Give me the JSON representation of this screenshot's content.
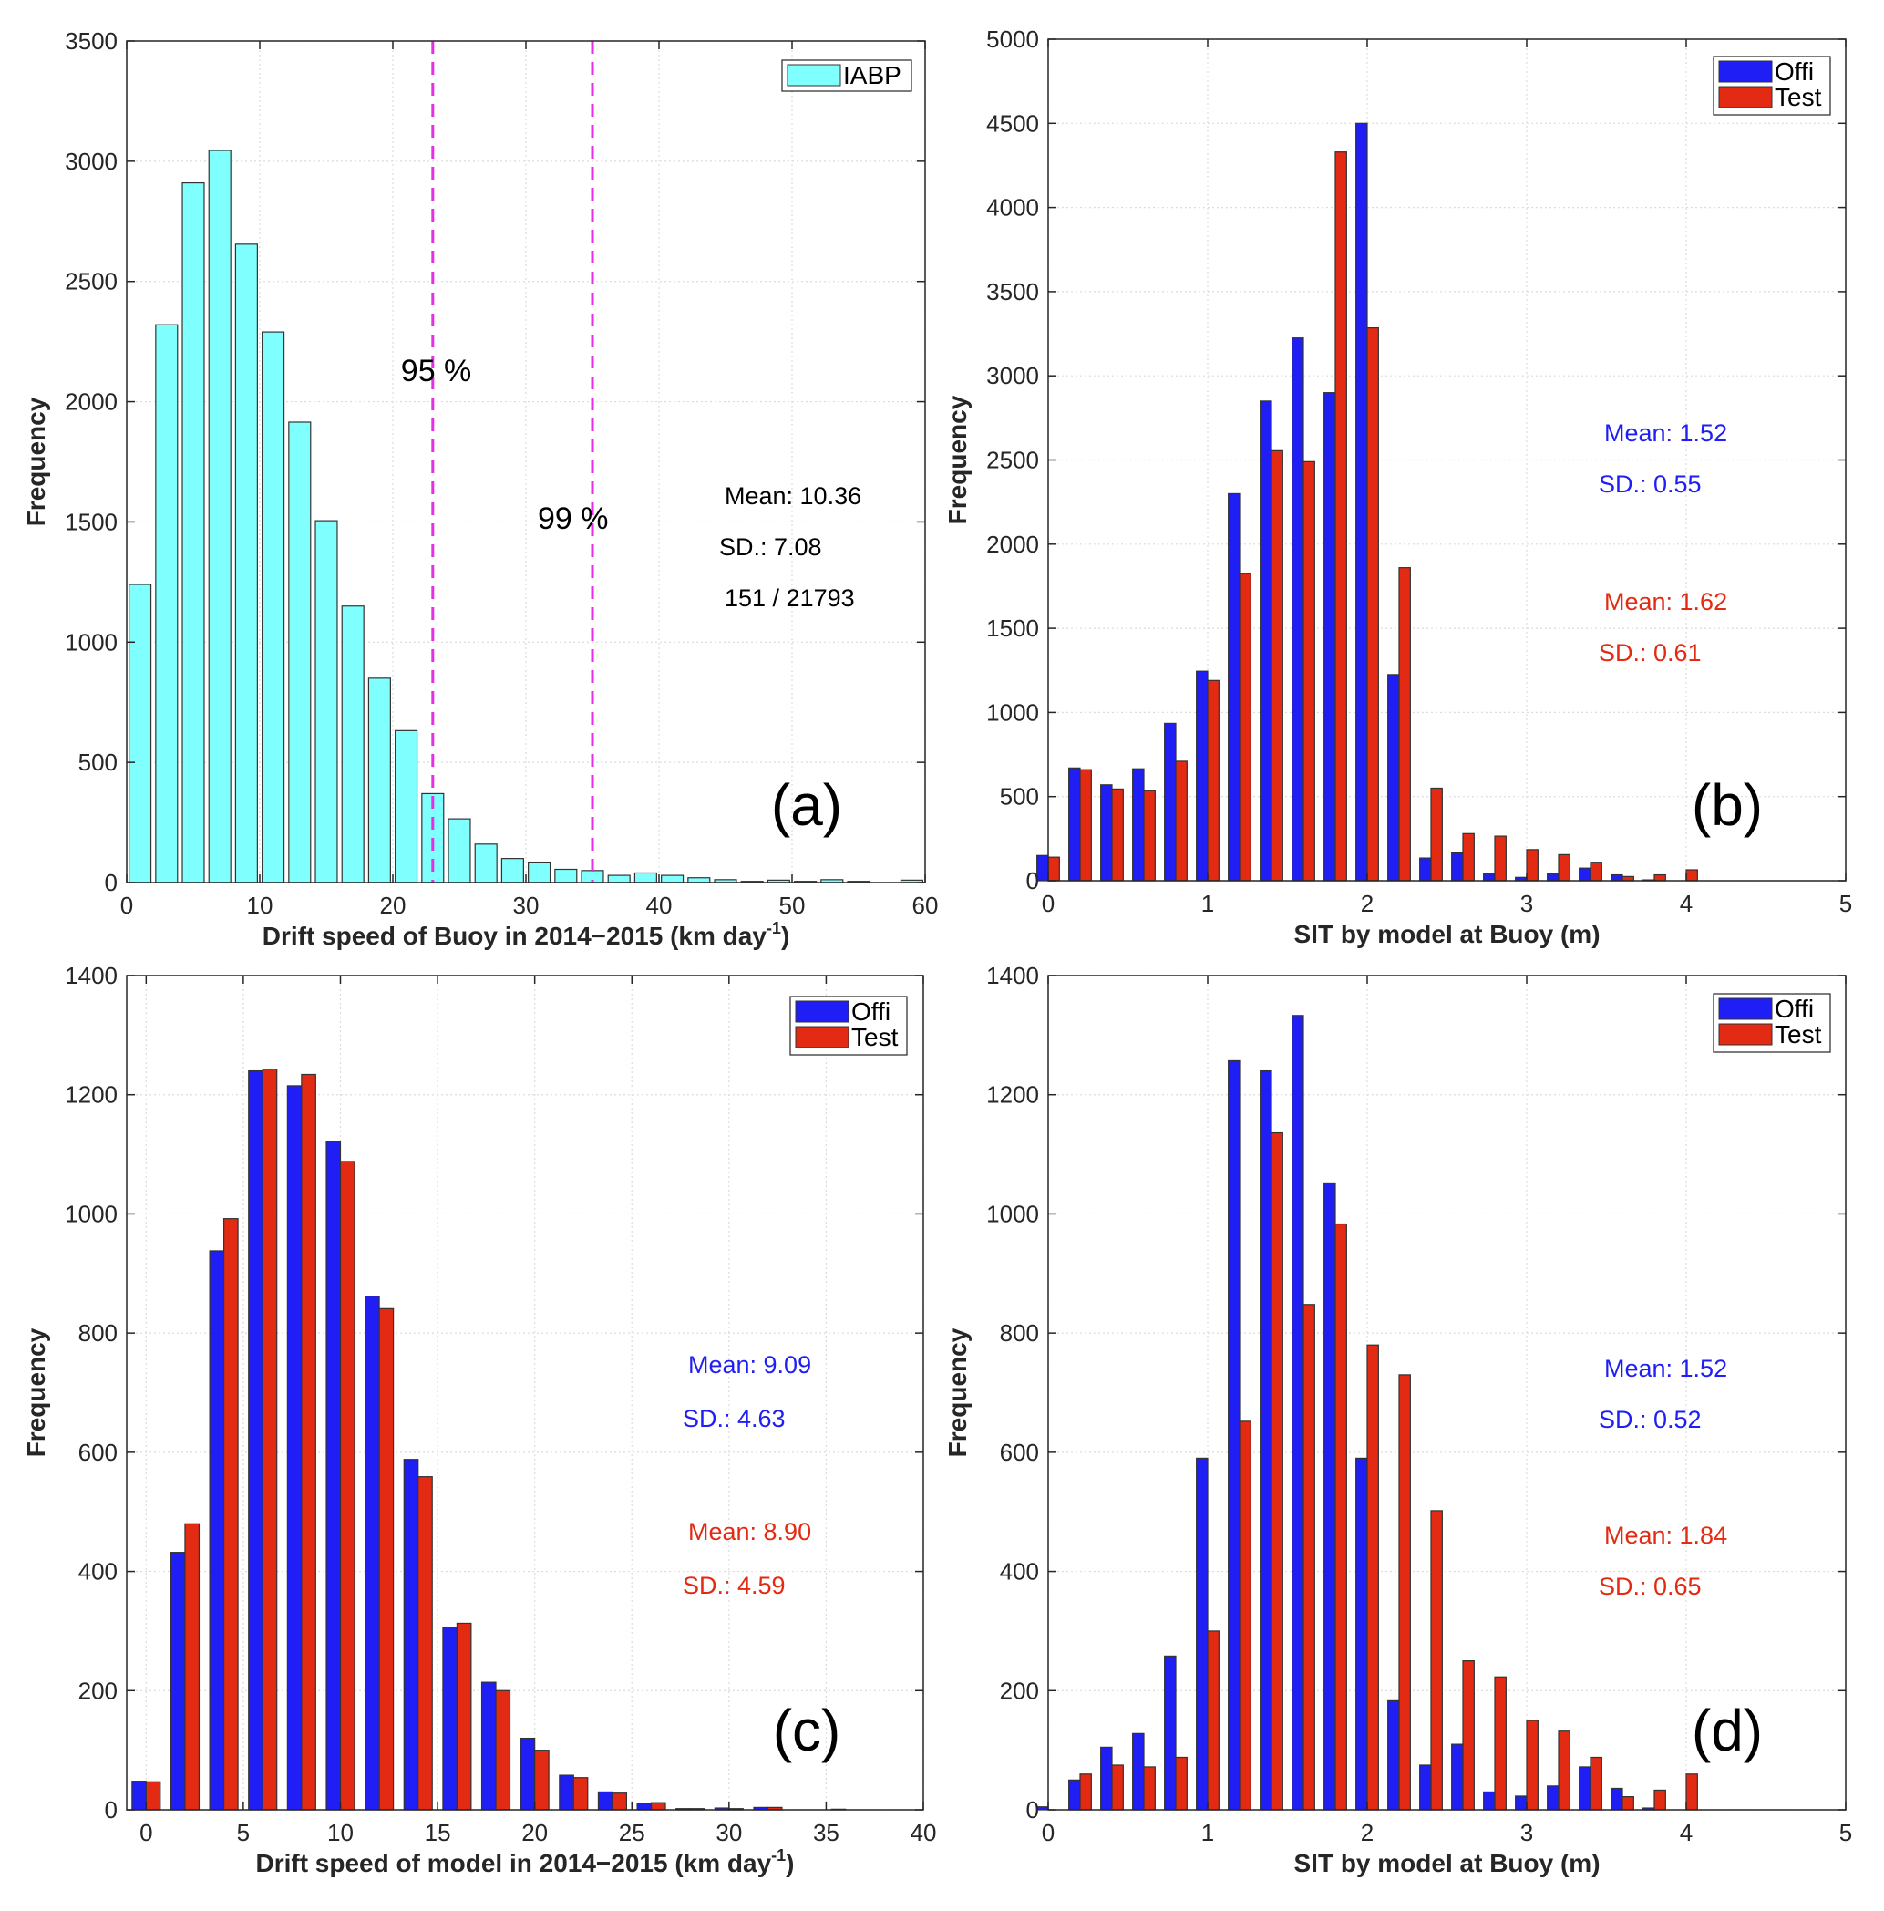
{
  "chart_data": [
    {
      "id": "a",
      "type": "bar",
      "panel_label": "(a)",
      "xlabel": "Drift speed of Buoy in 2014−2015 (km day",
      "xlabel_sup": "-1",
      "xlabel_tail": ")",
      "ylabel": "Frequency",
      "xlim": [
        0,
        60
      ],
      "ylim": [
        0,
        3500
      ],
      "xticks": [
        0,
        10,
        20,
        30,
        40,
        50,
        60
      ],
      "yticks": [
        0,
        500,
        1000,
        1500,
        2000,
        2500,
        3000,
        3500
      ],
      "grid": true,
      "legend_position": "top-right",
      "bin_width": 2,
      "x": [
        1,
        3,
        5,
        7,
        9,
        11,
        13,
        15,
        17,
        19,
        21,
        23,
        25,
        27,
        29,
        31,
        33,
        35,
        37,
        39,
        41,
        43,
        45,
        47,
        49,
        51,
        53,
        55,
        57,
        59
      ],
      "series": [
        {
          "name": "IABP",
          "color": "#80ffff",
          "values": [
            1240,
            2320,
            2910,
            3045,
            2655,
            2290,
            1915,
            1505,
            1150,
            850,
            632,
            370,
            265,
            160,
            100,
            85,
            55,
            50,
            30,
            40,
            30,
            20,
            12,
            5,
            10,
            5,
            12,
            5,
            0,
            10
          ]
        }
      ],
      "vlines": [
        {
          "x": 23,
          "label": "95  %",
          "color": "#e62ee6"
        },
        {
          "x": 35,
          "label": "99 %",
          "color": "#e62ee6"
        }
      ],
      "annotations": [
        {
          "text": "Mean: 10.36",
          "color": "#000000"
        },
        {
          "text": "SD.: 7.08",
          "color": "#000000"
        },
        {
          "text": "151 / 21793",
          "color": "#000000"
        }
      ]
    },
    {
      "id": "b",
      "type": "bar",
      "panel_label": "(b)",
      "xlabel": "SIT by model at Buoy (m)",
      "ylabel": "Frequency",
      "xlim": [
        0,
        5
      ],
      "ylim": [
        0,
        5000
      ],
      "xticks": [
        0,
        1,
        2,
        3,
        4,
        5
      ],
      "yticks": [
        0,
        500,
        1000,
        1500,
        2000,
        2500,
        3000,
        3500,
        4000,
        4500,
        5000
      ],
      "grid": true,
      "legend_position": "top-right",
      "x": [
        0,
        0.2,
        0.4,
        0.6,
        0.8,
        1.0,
        1.2,
        1.4,
        1.6,
        1.8,
        2.0,
        2.2,
        2.4,
        2.6,
        2.8,
        3.0,
        3.2,
        3.4,
        3.6,
        3.8,
        4.0
      ],
      "series": [
        {
          "name": "Offi",
          "color": "#1f1ff5",
          "values": [
            150,
            670,
            570,
            665,
            935,
            1245,
            2300,
            2850,
            3225,
            2900,
            4500,
            1225,
            135,
            165,
            40,
            20,
            40,
            75,
            35,
            5,
            0
          ]
        },
        {
          "name": "Test",
          "color": "#e32a12",
          "values": [
            140,
            660,
            545,
            535,
            710,
            1190,
            1825,
            2555,
            2490,
            4330,
            3285,
            1860,
            550,
            280,
            265,
            185,
            155,
            110,
            25,
            35,
            65
          ]
        }
      ],
      "annotations": [
        {
          "text": "Mean: 1.52",
          "color": "#1f1ff5"
        },
        {
          "text": "SD.: 0.55",
          "color": "#1f1ff5"
        },
        {
          "text": "Mean: 1.62",
          "color": "#e32a12"
        },
        {
          "text": "SD.: 0.61",
          "color": "#e32a12"
        }
      ]
    },
    {
      "id": "c",
      "type": "bar",
      "panel_label": "(c)",
      "xlabel": "Drift speed of model  in 2014−2015 (km day",
      "xlabel_sup": "-1",
      "xlabel_tail": ")",
      "ylabel": "Frequency",
      "xlim": [
        -1,
        40
      ],
      "ylim": [
        0,
        1400
      ],
      "xticks": [
        0,
        5,
        10,
        15,
        20,
        25,
        30,
        35,
        40
      ],
      "yticks": [
        0,
        200,
        400,
        600,
        800,
        1000,
        1200,
        1400
      ],
      "grid": true,
      "legend_position": "top-right",
      "x": [
        0,
        2,
        4,
        6,
        8,
        10,
        12,
        14,
        16,
        18,
        20,
        22,
        24,
        26,
        28,
        30,
        32,
        34,
        36
      ],
      "series": [
        {
          "name": "Offi",
          "color": "#1f1ff5",
          "values": [
            48,
            432,
            938,
            1240,
            1215,
            1122,
            862,
            588,
            306,
            214,
            120,
            58,
            30,
            10,
            2,
            3,
            4,
            0,
            1
          ]
        },
        {
          "name": "Test",
          "color": "#e32a12",
          "values": [
            47,
            480,
            992,
            1243,
            1234,
            1088,
            841,
            559,
            313,
            200,
            100,
            54,
            28,
            12,
            2,
            2,
            4,
            0,
            0
          ]
        }
      ],
      "annotations": [
        {
          "text": "Mean: 9.09",
          "color": "#1f1ff5"
        },
        {
          "text": "SD.: 4.63",
          "color": "#1f1ff5"
        },
        {
          "text": "Mean: 8.90",
          "color": "#e32a12"
        },
        {
          "text": "SD.: 4.59",
          "color": "#e32a12"
        }
      ]
    },
    {
      "id": "d",
      "type": "bar",
      "panel_label": "(d)",
      "xlabel": "SIT by model at Buoy (m)",
      "ylabel": "Frequency",
      "xlim": [
        0,
        5
      ],
      "ylim": [
        0,
        1400
      ],
      "xticks": [
        0,
        1,
        2,
        3,
        4,
        5
      ],
      "yticks": [
        0,
        200,
        400,
        600,
        800,
        1000,
        1200,
        1400
      ],
      "grid": true,
      "legend_position": "top-right",
      "x": [
        0,
        0.2,
        0.4,
        0.6,
        0.8,
        1.0,
        1.2,
        1.4,
        1.6,
        1.8,
        2.0,
        2.2,
        2.4,
        2.6,
        2.8,
        3.0,
        3.2,
        3.4,
        3.6,
        3.8,
        4.0
      ],
      "series": [
        {
          "name": "Offi",
          "color": "#1f1ff5",
          "values": [
            5,
            50,
            105,
            128,
            258,
            590,
            1257,
            1240,
            1333,
            1052,
            590,
            183,
            75,
            110,
            30,
            23,
            40,
            72,
            36,
            3,
            0
          ]
        },
        {
          "name": "Test",
          "color": "#e32a12",
          "values": [
            0,
            60,
            75,
            72,
            88,
            300,
            652,
            1136,
            848,
            983,
            780,
            730,
            502,
            250,
            223,
            150,
            132,
            88,
            22,
            33,
            60
          ]
        }
      ],
      "annotations": [
        {
          "text": "Mean: 1.52",
          "color": "#1f1ff5"
        },
        {
          "text": "SD.: 0.52",
          "color": "#1f1ff5"
        },
        {
          "text": "Mean: 1.84",
          "color": "#e32a12"
        },
        {
          "text": "SD.: 0.65",
          "color": "#e32a12"
        }
      ]
    }
  ]
}
